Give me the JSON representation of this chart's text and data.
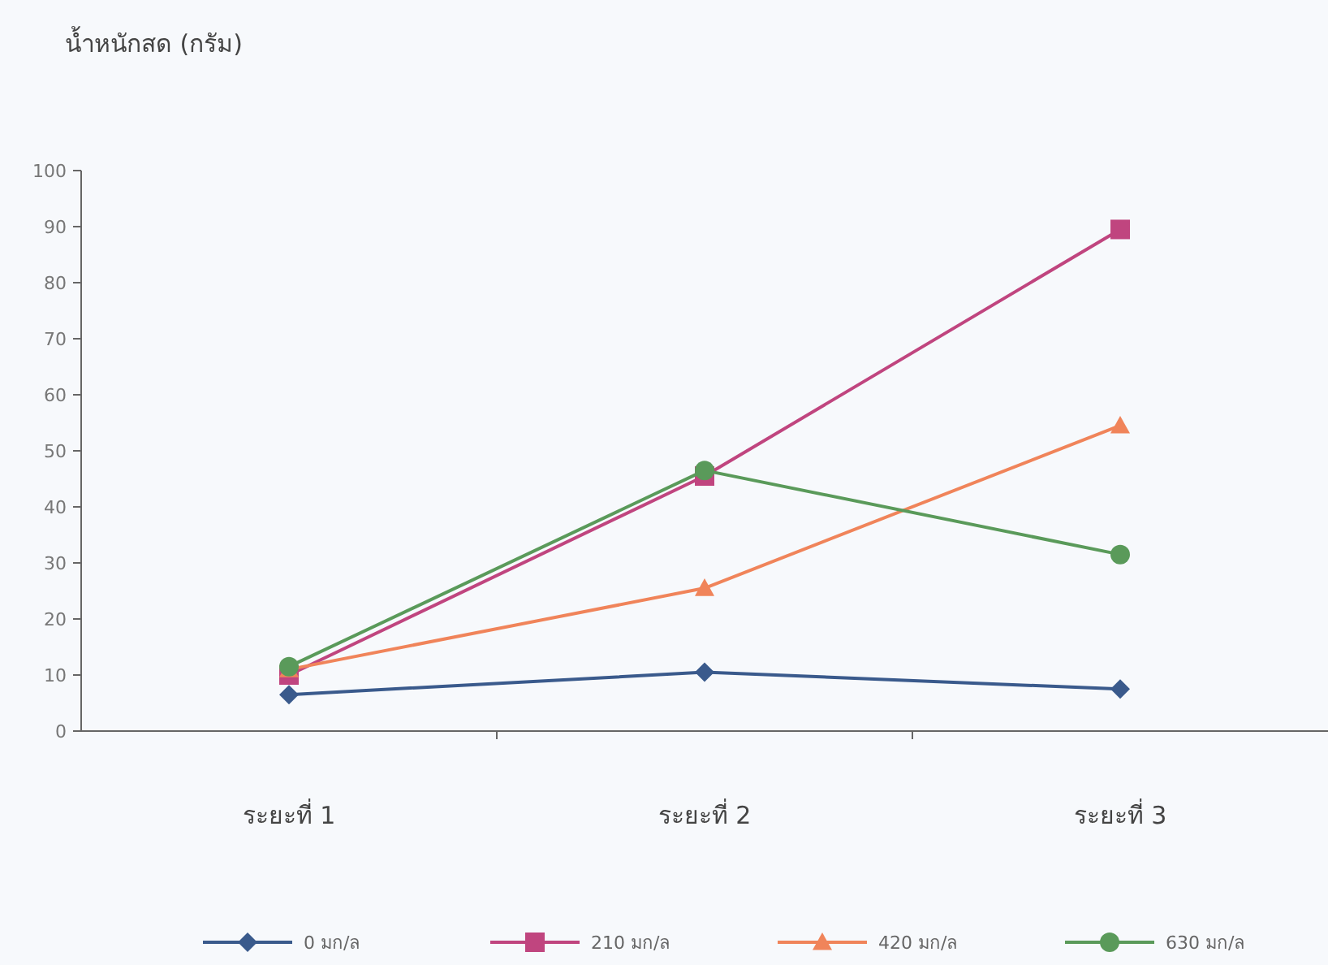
{
  "chart_data": {
    "type": "line",
    "ylabel": "น้ำหนักสด (กรัม)",
    "categories": [
      "ระยะที่ 1",
      "ระยะที่ 2",
      "ระยะที่ 3"
    ],
    "ylim": [
      0,
      100
    ],
    "yticks": [
      0,
      10,
      20,
      30,
      40,
      50,
      60,
      70,
      80,
      90,
      100
    ],
    "grid": false,
    "legend": "bottom",
    "series": [
      {
        "name": "0 มก/ล",
        "color": "#3a5a8c",
        "marker": "diamond",
        "values": [
          6.5,
          10.5,
          7.5
        ]
      },
      {
        "name": "210 มก/ล",
        "color": "#c0457f",
        "marker": "square",
        "values": [
          10,
          45.5,
          89.5
        ]
      },
      {
        "name": "420 มก/ล",
        "color": "#f0845a",
        "marker": "triangle",
        "values": [
          11,
          25.5,
          54.5
        ]
      },
      {
        "name": "630 มก/ล",
        "color": "#5a9a5a",
        "marker": "circle",
        "values": [
          11.5,
          46.5,
          31.5
        ]
      }
    ]
  }
}
